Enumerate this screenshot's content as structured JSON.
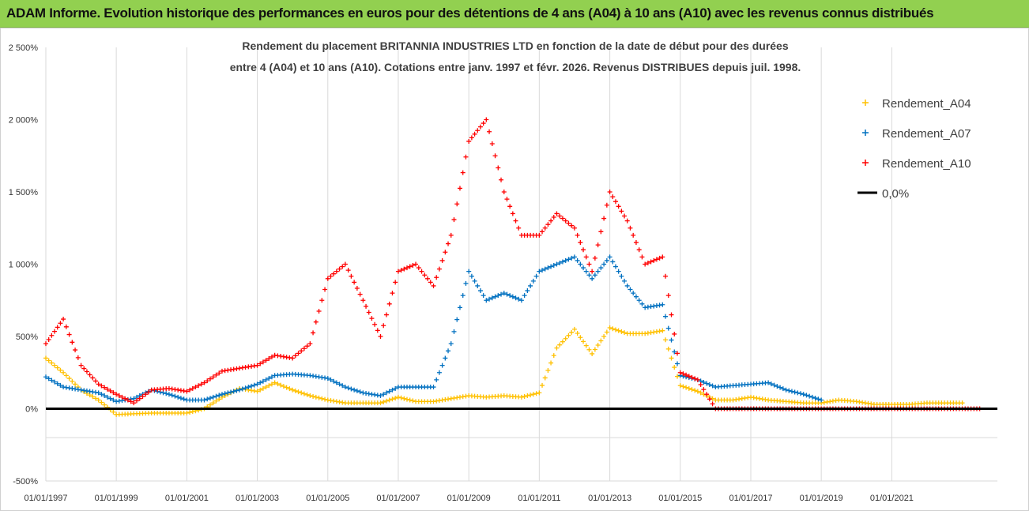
{
  "header": {
    "title": "ADAM Informe. Evolution historique des performances en euros pour des détentions de 4 ans (A04) à 10 ans (A10) avec les revenus connus distribués"
  },
  "chart_data": {
    "type": "scatter",
    "subtitle_line1": "Rendement du placement BRITANNIA INDUSTRIES LTD en fonction de la date de début pour des durées",
    "subtitle_line2": "entre 4 (A04) et 10 ans (A10).  Cotations entre janv. 1997 et févr. 2026. Revenus DISTRIBUES depuis juil. 1998.",
    "x_range": [
      "1997-01-01",
      "2023-12-31"
    ],
    "ylim": [
      -500,
      2500
    ],
    "y_ticks": [
      -500,
      0,
      500,
      1000,
      1500,
      2000,
      2500
    ],
    "y_tick_labels": [
      "-500%",
      "0%",
      "500%",
      "1 000%",
      "1 500%",
      "2 000%",
      "2 500%"
    ],
    "x_tick_labels": [
      "01/01/1997",
      "01/01/1999",
      "01/01/2001",
      "01/01/2003",
      "01/01/2005",
      "01/01/2007",
      "01/01/2009",
      "01/01/2011",
      "01/01/2013",
      "01/01/2015",
      "01/01/2017",
      "01/01/2019",
      "01/01/2021"
    ],
    "x_tick_dates": [
      "1997-01-01",
      "1999-01-01",
      "2001-01-01",
      "2003-01-01",
      "2005-01-01",
      "2007-01-01",
      "2009-01-01",
      "2011-01-01",
      "2013-01-01",
      "2015-01-01",
      "2017-01-01",
      "2019-01-01",
      "2021-01-01"
    ],
    "grid": "vertical",
    "legend_position": "top-right",
    "x": [
      "1997-01-01",
      "1997-07-01",
      "1998-01-01",
      "1998-07-01",
      "1999-01-01",
      "1999-07-01",
      "2000-01-01",
      "2000-07-01",
      "2001-01-01",
      "2001-07-01",
      "2002-01-01",
      "2002-07-01",
      "2003-01-01",
      "2003-07-01",
      "2004-01-01",
      "2004-07-01",
      "2005-01-01",
      "2005-07-01",
      "2006-01-01",
      "2006-07-01",
      "2007-01-01",
      "2007-07-01",
      "2008-01-01",
      "2008-07-01",
      "2009-01-01",
      "2009-07-01",
      "2010-01-01",
      "2010-07-01",
      "2011-01-01",
      "2011-07-01",
      "2012-01-01",
      "2012-07-01",
      "2013-01-01",
      "2013-07-01",
      "2014-01-01",
      "2014-07-01",
      "2015-01-01",
      "2015-07-01",
      "2016-01-01",
      "2016-07-01",
      "2017-01-01",
      "2017-07-01",
      "2018-01-01",
      "2018-07-01",
      "2019-01-01",
      "2019-07-01",
      "2020-01-01",
      "2020-07-01",
      "2021-01-01",
      "2021-07-01",
      "2022-01-01",
      "2022-07-01",
      "2023-01-01",
      "2023-07-01"
    ],
    "series": [
      {
        "name": "Rendement_A04",
        "color": "#ffc000",
        "marker": "+",
        "values": [
          350,
          250,
          130,
          60,
          -40,
          -35,
          -30,
          -30,
          -30,
          0,
          80,
          140,
          120,
          180,
          130,
          90,
          60,
          40,
          40,
          40,
          80,
          50,
          50,
          70,
          90,
          80,
          90,
          80,
          110,
          420,
          550,
          380,
          560,
          520,
          520,
          540,
          160,
          120,
          60,
          60,
          80,
          60,
          50,
          40,
          40,
          60,
          50,
          30,
          30,
          30,
          40,
          40,
          40,
          null
        ]
      },
      {
        "name": "Rendement_A07",
        "color": "#0070c0",
        "marker": "+",
        "values": [
          220,
          150,
          130,
          110,
          50,
          70,
          130,
          100,
          60,
          60,
          100,
          130,
          170,
          230,
          240,
          230,
          210,
          150,
          110,
          90,
          150,
          150,
          150,
          450,
          950,
          750,
          800,
          750,
          950,
          1000,
          1050,
          900,
          1050,
          850,
          700,
          720,
          230,
          200,
          150,
          160,
          170,
          180,
          130,
          100,
          60,
          null,
          null,
          null,
          null,
          null,
          null,
          null,
          null,
          null
        ]
      },
      {
        "name": "Rendement_A10",
        "color": "#ff0000",
        "marker": "+",
        "values": [
          450,
          620,
          300,
          170,
          100,
          40,
          130,
          140,
          120,
          180,
          260,
          280,
          300,
          370,
          350,
          450,
          900,
          1000,
          750,
          500,
          950,
          1000,
          850,
          1200,
          1850,
          2000,
          1500,
          1200,
          1200,
          1350,
          1250,
          950,
          1500,
          1300,
          1000,
          1050,
          250,
          200,
          0,
          0,
          0,
          0,
          0,
          0,
          0,
          0,
          0,
          0,
          0,
          0,
          0,
          0,
          0,
          0
        ]
      },
      {
        "name": "0,0%",
        "color": "#000000",
        "marker": "line",
        "values": [
          0,
          0
        ]
      }
    ]
  }
}
